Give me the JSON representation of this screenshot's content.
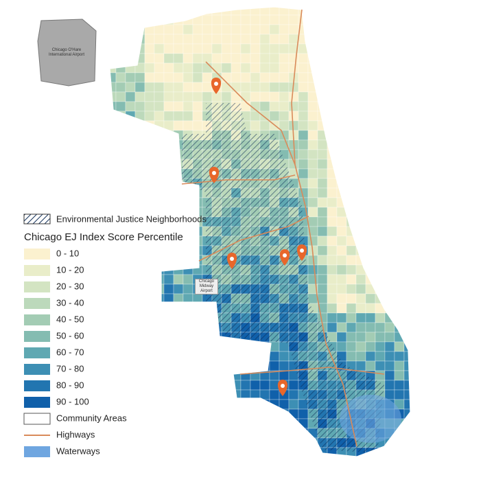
{
  "map": {
    "airports": [
      "Chicago O'Hare International Airport",
      "Chicago Midway Airport"
    ]
  },
  "legend": {
    "ej_label": "Environmental Justice Neighborhoods",
    "title": "Chicago EJ Index Score Percentile",
    "classes": [
      {
        "label": "0 - 10",
        "color": "#fbf1cf"
      },
      {
        "label": "10 - 20",
        "color": "#e9edc9"
      },
      {
        "label": "20 - 30",
        "color": "#d3e4c2"
      },
      {
        "label": "30 - 40",
        "color": "#bcd9bb"
      },
      {
        "label": "40 - 50",
        "color": "#a3ccb4"
      },
      {
        "label": "50 - 60",
        "color": "#84bcb1"
      },
      {
        "label": "60 - 70",
        "color": "#5fa8b2"
      },
      {
        "label": "70 - 80",
        "color": "#3d8fb4"
      },
      {
        "label": "80 - 90",
        "color": "#2275b0"
      },
      {
        "label": "90 - 100",
        "color": "#1060aa"
      }
    ],
    "community_areas": "Community Areas",
    "highways": "Highways",
    "waterways": "Waterways"
  }
}
